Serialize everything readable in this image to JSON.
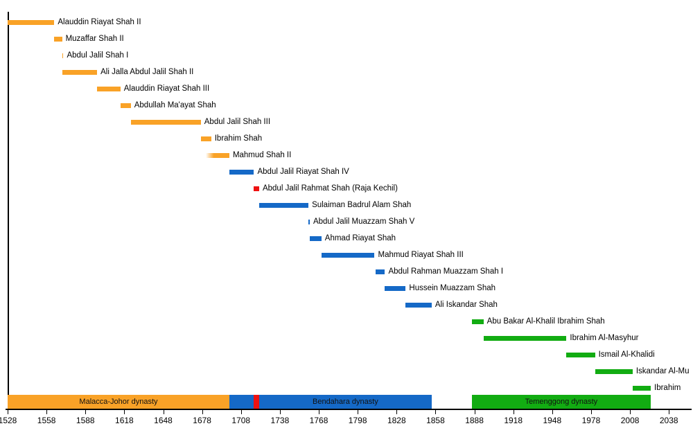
{
  "chart_data": {
    "type": "bar",
    "variant": "timeline-gantt",
    "title": "",
    "x_axis": {
      "tick_years": [
        1528,
        1558,
        1588,
        1618,
        1648,
        1678,
        1708,
        1738,
        1768,
        1798,
        1828,
        1858,
        1888,
        1918,
        1948,
        1978,
        2008,
        2038
      ],
      "range": [
        1528,
        2045
      ],
      "grid": false
    },
    "colors": {
      "orange": "#F9A227",
      "blue": "#1569C7",
      "green": "#12AC12",
      "red": "#EE1111",
      "axis": "#000000"
    },
    "rulers": [
      {
        "name": "Alauddin Riayat Shah II",
        "start": 1528,
        "end": 1564,
        "color": "orange",
        "fade_in": false
      },
      {
        "name": "Muzaffar Shah II",
        "start": 1564,
        "end": 1570,
        "color": "orange",
        "fade_in": false
      },
      {
        "name": "Abdul Jalil Shah I",
        "start": 1570,
        "end": 1571,
        "color": "orange",
        "fade_in": false
      },
      {
        "name": "Ali Jalla Abdul Jalil Shah II",
        "start": 1570,
        "end": 1597,
        "color": "orange",
        "fade_in": false
      },
      {
        "name": "Alauddin Riayat Shah III",
        "start": 1597,
        "end": 1615,
        "color": "orange",
        "fade_in": false
      },
      {
        "name": "Abdullah Ma'ayat Shah",
        "start": 1615,
        "end": 1623,
        "color": "orange",
        "fade_in": false
      },
      {
        "name": "Abdul Jalil Shah III",
        "start": 1623,
        "end": 1677,
        "color": "orange",
        "fade_in": false
      },
      {
        "name": "Ibrahim Shah",
        "start": 1677,
        "end": 1685,
        "color": "orange",
        "fade_in": false
      },
      {
        "name": "Mahmud Shah II",
        "start": 1681,
        "solid_from": 1685,
        "end": 1699,
        "color": "orange",
        "fade_in": true
      },
      {
        "name": "Abdul Jalil Riayat Shah IV",
        "start": 1699,
        "end": 1718,
        "color": "blue",
        "fade_in": false
      },
      {
        "name": "Abdul Jalil Rahmat Shah (Raja Kechil)",
        "start": 1718,
        "end": 1722,
        "color": "red",
        "fade_in": false
      },
      {
        "name": "Sulaiman Badrul Alam Shah",
        "start": 1722,
        "end": 1760,
        "color": "blue",
        "fade_in": false
      },
      {
        "name": "Abdul Jalil Muazzam Shah V",
        "start": 1760,
        "end": 1761,
        "color": "blue",
        "fade_in": false
      },
      {
        "name": "Ahmad Riayat Shah",
        "start": 1761,
        "end": 1770,
        "color": "blue",
        "fade_in": false
      },
      {
        "name": "Mahmud Riayat Shah III",
        "start": 1770,
        "end": 1811,
        "color": "blue",
        "fade_in": false
      },
      {
        "name": "Abdul Rahman Muazzam Shah I",
        "start": 1812,
        "end": 1819,
        "color": "blue",
        "fade_in": false
      },
      {
        "name": "Hussein Muazzam Shah",
        "start": 1819,
        "end": 1835,
        "color": "blue",
        "fade_in": false
      },
      {
        "name": "Ali Iskandar Shah",
        "start": 1835,
        "end": 1855,
        "color": "blue",
        "fade_in": false
      },
      {
        "name": "Abu Bakar Al-Khalil Ibrahim Shah",
        "start": 1886,
        "end": 1895,
        "color": "green",
        "fade_in": false
      },
      {
        "name": "Ibrahim Al-Masyhur",
        "start": 1895,
        "end": 1959,
        "color": "green",
        "fade_in": false
      },
      {
        "name": "Ismail Al-Khalidi",
        "start": 1959,
        "end": 1981,
        "color": "green",
        "fade_in": false
      },
      {
        "name": "Iskandar Al-Mu",
        "start": 1981,
        "end": 2010,
        "color": "green",
        "fade_in": false
      },
      {
        "name": "Ibrahim",
        "start": 2010,
        "end": 2024,
        "color": "green",
        "fade_in": false
      }
    ],
    "dynasties": [
      {
        "name": "Malacca-Johor dynasty",
        "start": 1528,
        "end": 1699,
        "color": "orange"
      },
      {
        "name": "Bendahara dynasty",
        "start": 1699,
        "end": 1855,
        "color": "blue",
        "overlay": {
          "start": 1718,
          "end": 1722,
          "color": "red"
        },
        "label_from": 1722
      },
      {
        "name": "Temenggong dynasty",
        "start": 1886,
        "end": 2024,
        "color": "green"
      }
    ]
  }
}
